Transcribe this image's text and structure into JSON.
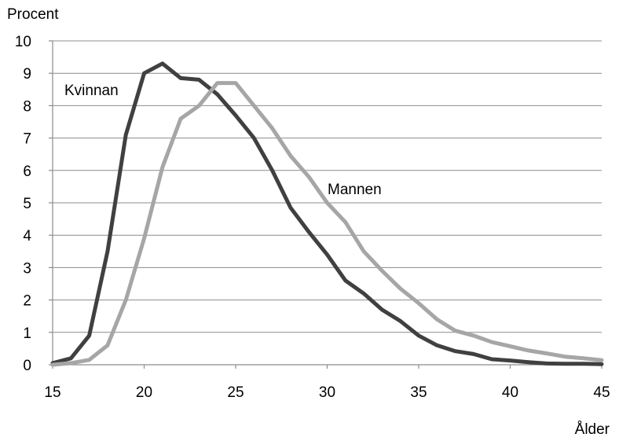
{
  "chart_data": {
    "type": "line",
    "ylabel": "Procent",
    "xlabel": "Ålder",
    "xlim": [
      15,
      45
    ],
    "ylim": [
      0,
      10
    ],
    "x_ticks": [
      15,
      20,
      25,
      30,
      35,
      40,
      45
    ],
    "y_ticks": [
      0,
      1,
      2,
      3,
      4,
      5,
      6,
      7,
      8,
      9,
      10
    ],
    "grid": "horizontal",
    "legend": "none",
    "series": [
      {
        "name": "Kvinnan",
        "color": "#404040",
        "x": [
          15,
          16,
          17,
          18,
          19,
          20,
          21,
          22,
          23,
          24,
          25,
          26,
          27,
          28,
          29,
          30,
          31,
          32,
          33,
          34,
          35,
          36,
          37,
          38,
          39,
          40,
          41,
          42,
          43,
          44,
          45
        ],
        "values": [
          0.05,
          0.2,
          0.9,
          3.5,
          7.1,
          9.0,
          9.3,
          8.85,
          8.8,
          8.35,
          7.7,
          7.0,
          6.0,
          4.85,
          4.1,
          3.4,
          2.6,
          2.2,
          1.7,
          1.35,
          0.9,
          0.6,
          0.42,
          0.33,
          0.17,
          0.13,
          0.08,
          0.04,
          0.03,
          0.03,
          0.02
        ]
      },
      {
        "name": "Mannen",
        "color": "#a6a6a6",
        "x": [
          15,
          16,
          17,
          18,
          19,
          20,
          21,
          22,
          23,
          24,
          25,
          26,
          27,
          28,
          29,
          30,
          31,
          32,
          33,
          34,
          35,
          36,
          37,
          38,
          39,
          40,
          41,
          42,
          43,
          44,
          45
        ],
        "values": [
          0.0,
          0.05,
          0.15,
          0.6,
          2.0,
          3.9,
          6.1,
          7.6,
          8.0,
          8.7,
          8.7,
          8.0,
          7.3,
          6.45,
          5.8,
          5.0,
          4.4,
          3.5,
          2.9,
          2.35,
          1.9,
          1.4,
          1.05,
          0.9,
          0.7,
          0.57,
          0.44,
          0.35,
          0.25,
          0.2,
          0.14
        ]
      }
    ]
  }
}
